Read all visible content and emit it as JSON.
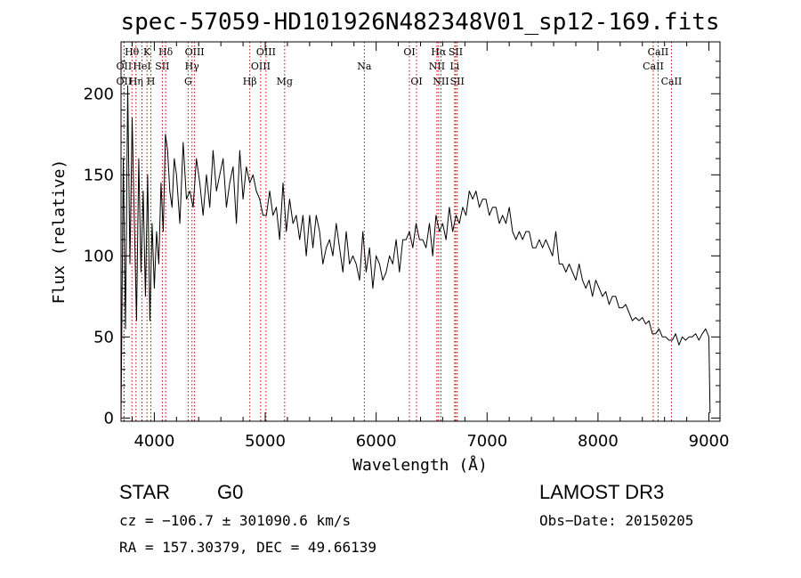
{
  "chart_data": {
    "type": "line",
    "title": "spec-57059-HD101926N482348V01_sp12-169.fits",
    "xlabel": "Wavelength (Å)",
    "ylabel": "Flux (relative)",
    "xlim": [
      3700,
      9100
    ],
    "ylim": [
      -2,
      232
    ],
    "x_ticks": [
      "4000",
      "5000",
      "6000",
      "7000",
      "8000",
      "9000"
    ],
    "x_tick_values": [
      4000,
      5000,
      6000,
      7000,
      8000,
      9000
    ],
    "y_ticks": [
      "0",
      "50",
      "100",
      "150",
      "200"
    ],
    "y_tick_values": [
      0,
      50,
      100,
      150,
      200
    ],
    "grid": false,
    "line_color": "#000000",
    "marker_color": "#c00000",
    "spectral_lines": [
      {
        "label": "Hθ",
        "wavelength": 3798,
        "row": 0
      },
      {
        "label": "OII",
        "wavelength": 3727,
        "row": 1
      },
      {
        "label": "OII",
        "wavelength": 3727,
        "row": 2
      },
      {
        "label": "Hη",
        "wavelength": 3835,
        "row": 2
      },
      {
        "label": "K",
        "wavelength": 3934,
        "row": 0
      },
      {
        "label": "HeI",
        "wavelength": 3889,
        "row": 1
      },
      {
        "label": "H",
        "wavelength": 3969,
        "row": 2
      },
      {
        "label": "SII",
        "wavelength": 4072,
        "row": 1
      },
      {
        "label": "Hδ",
        "wavelength": 4102,
        "row": 0
      },
      {
        "label": "OIII",
        "wavelength": 4363,
        "row": 0
      },
      {
        "label": "Hγ",
        "wavelength": 4340,
        "row": 1
      },
      {
        "label": "G",
        "wavelength": 4305,
        "row": 2
      },
      {
        "label": "Hβ",
        "wavelength": 4861,
        "row": 2
      },
      {
        "label": "OIII",
        "wavelength": 5007,
        "row": 0
      },
      {
        "label": "OIII",
        "wavelength": 4959,
        "row": 1
      },
      {
        "label": "Mg",
        "wavelength": 5175,
        "row": 2
      },
      {
        "label": "Na",
        "wavelength": 5893,
        "row": 1
      },
      {
        "label": "OI",
        "wavelength": 6300,
        "row": 0
      },
      {
        "label": "OI",
        "wavelength": 6364,
        "row": 2
      },
      {
        "label": "Hα",
        "wavelength": 6563,
        "row": 0
      },
      {
        "label": "NII",
        "wavelength": 6548,
        "row": 1
      },
      {
        "label": "NII",
        "wavelength": 6584,
        "row": 2
      },
      {
        "label": "SII",
        "wavelength": 6717,
        "row": 0
      },
      {
        "label": "Li",
        "wavelength": 6708,
        "row": 1
      },
      {
        "label": "SII",
        "wavelength": 6731,
        "row": 2
      },
      {
        "label": "CaII",
        "wavelength": 8542,
        "row": 0
      },
      {
        "label": "CaII",
        "wavelength": 8498,
        "row": 1
      },
      {
        "label": "CaII",
        "wavelength": 8662,
        "row": 2
      }
    ],
    "series": [
      {
        "x": [
          3700,
          3720,
          3740,
          3760,
          3780,
          3800,
          3820,
          3840,
          3860,
          3880,
          3900,
          3920,
          3940,
          3960,
          3980,
          4000,
          4020,
          4040,
          4060,
          4080,
          4100,
          4120,
          4140,
          4160,
          4180,
          4200,
          4230,
          4260,
          4290,
          4320,
          4350,
          4380,
          4410,
          4440,
          4470,
          4500,
          4530,
          4560,
          4590,
          4620,
          4650,
          4680,
          4710,
          4740,
          4770,
          4800,
          4830,
          4860,
          4890,
          4920,
          4950,
          4980,
          5010,
          5040,
          5070,
          5100,
          5130,
          5160,
          5190,
          5220,
          5250,
          5280,
          5310,
          5340,
          5370,
          5400,
          5430,
          5460,
          5490,
          5520,
          5550,
          5580,
          5610,
          5640,
          5670,
          5700,
          5730,
          5760,
          5790,
          5820,
          5850,
          5880,
          5910,
          5940,
          5970,
          6000,
          6030,
          6060,
          6090,
          6120,
          6150,
          6180,
          6210,
          6240,
          6270,
          6300,
          6330,
          6360,
          6390,
          6420,
          6450,
          6480,
          6510,
          6540,
          6570,
          6600,
          6630,
          6660,
          6690,
          6720,
          6750,
          6780,
          6810,
          6840,
          6870,
          6900,
          6930,
          6960,
          6990,
          7020,
          7050,
          7080,
          7110,
          7140,
          7170,
          7200,
          7230,
          7260,
          7290,
          7320,
          7350,
          7380,
          7410,
          7440,
          7470,
          7500,
          7530,
          7560,
          7590,
          7620,
          7650,
          7680,
          7710,
          7740,
          7770,
          7800,
          7830,
          7860,
          7890,
          7920,
          7950,
          7980,
          8010,
          8040,
          8070,
          8100,
          8130,
          8160,
          8190,
          8220,
          8250,
          8280,
          8310,
          8340,
          8370,
          8400,
          8430,
          8460,
          8490,
          8520,
          8550,
          8580,
          8610,
          8640,
          8670,
          8700,
          8730,
          8760,
          8790,
          8820,
          8850,
          8880,
          8910,
          8940,
          8970,
          9000,
          9010
        ],
        "y": [
          0,
          160,
          55,
          205,
          95,
          185,
          120,
          60,
          160,
          90,
          140,
          75,
          150,
          60,
          120,
          80,
          115,
          95,
          145,
          115,
          175,
          165,
          140,
          130,
          160,
          150,
          120,
          170,
          135,
          140,
          130,
          160,
          145,
          125,
          150,
          130,
          165,
          140,
          150,
          160,
          130,
          145,
          155,
          120,
          165,
          135,
          155,
          145,
          150,
          140,
          135,
          125,
          125,
          140,
          125,
          130,
          110,
          145,
          115,
          135,
          120,
          125,
          110,
          125,
          100,
          125,
          105,
          125,
          115,
          95,
          105,
          110,
          100,
          120,
          105,
          90,
          115,
          95,
          100,
          95,
          85,
          115,
          90,
          105,
          80,
          100,
          95,
          85,
          90,
          100,
          95,
          110,
          90,
          110,
          110,
          115,
          105,
          120,
          110,
          110,
          105,
          120,
          100,
          125,
          115,
          120,
          110,
          130,
          115,
          125,
          120,
          130,
          125,
          140,
          135,
          140,
          130,
          135,
          135,
          125,
          130,
          130,
          120,
          125,
          120,
          130,
          115,
          110,
          115,
          110,
          115,
          115,
          105,
          105,
          110,
          105,
          110,
          105,
          100,
          115,
          95,
          95,
          90,
          95,
          90,
          85,
          95,
          85,
          80,
          85,
          75,
          85,
          80,
          75,
          78,
          70,
          75,
          75,
          68,
          68,
          70,
          65,
          60,
          62,
          60,
          62,
          58,
          60,
          52,
          52,
          55,
          50,
          50,
          48,
          48,
          52,
          45,
          50,
          48,
          50,
          50,
          52,
          48,
          52,
          55,
          50,
          3
        ]
      }
    ]
  },
  "info": {
    "object_type": "STAR",
    "subclass": "G0",
    "survey": "LAMOST DR3",
    "cz": "cz = −106.7 ± 301090.6 km/s",
    "obs_date": "Obs−Date: 20150205",
    "coords": "RA = 157.30379, DEC =  49.66139"
  }
}
